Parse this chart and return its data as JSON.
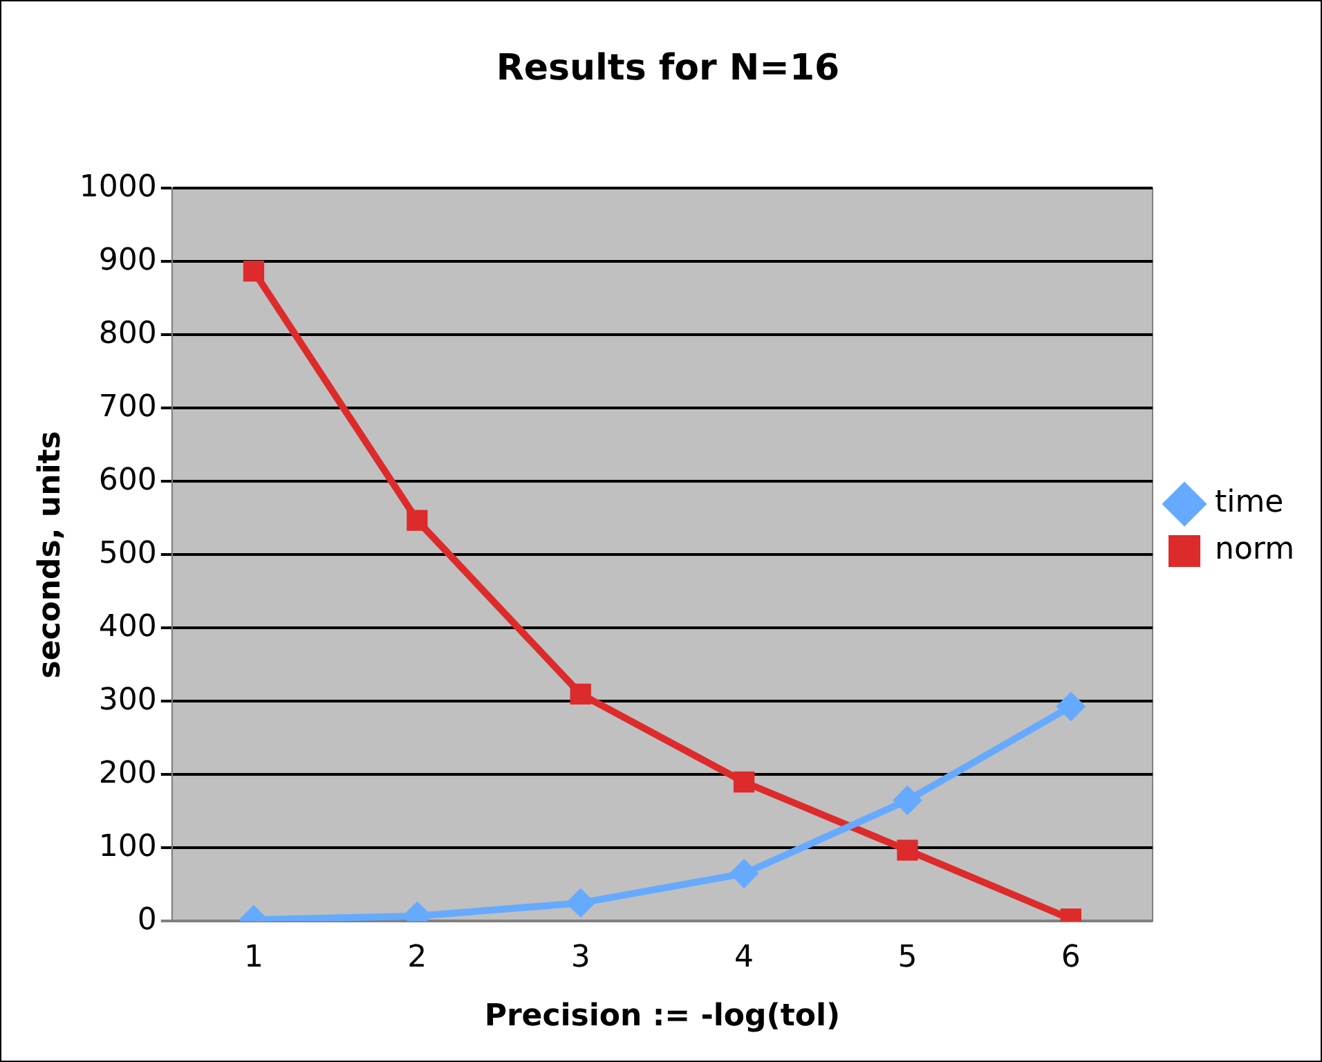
{
  "chart_data": {
    "type": "line",
    "title": "Results for N=16",
    "xlabel": "Precision := -log(tol)",
    "ylabel": "seconds, units",
    "categories": [
      "1",
      "2",
      "3",
      "4",
      "5",
      "6"
    ],
    "series": [
      {
        "name": "time",
        "color": "#66aaff",
        "marker": "diamond",
        "values": [
          2,
          7,
          25,
          65,
          165,
          293
        ]
      },
      {
        "name": "norm",
        "color": "#dd2b2b",
        "marker": "square",
        "values": [
          887,
          547,
          310,
          190,
          97,
          3
        ]
      }
    ],
    "ylim": [
      0,
      1000
    ],
    "yticks": [
      0,
      100,
      200,
      300,
      400,
      500,
      600,
      700,
      800,
      900,
      1000
    ],
    "grid": "y",
    "legend": "right",
    "line_style": "solid"
  }
}
